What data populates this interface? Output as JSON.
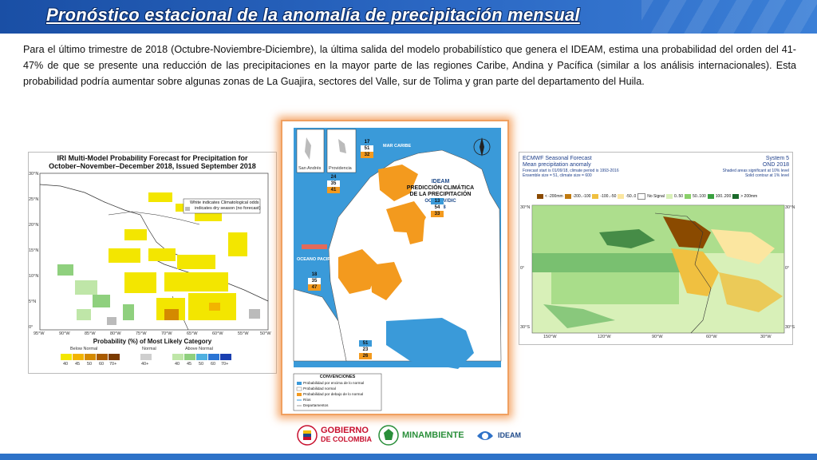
{
  "header": {
    "title": "Pronóstico estacional de la anomalía de precipitación mensual"
  },
  "body": {
    "paragraph": "Para el último trimestre de 2018 (Octubre-Noviembre-Diciembre), la última salida del modelo probabilístico que genera el IDEAM, estima una probabilidad del orden del 41-47% de que se presente una reducción de las precipitaciones en la mayor parte de las regiones Caribe, Andina y Pacífica (similar a los análisis internacionales). Esta probabilidad podría aumentar sobre algunas zonas de La Guajira, sectores del Valle, sur de Tolima y gran parte del departamento del Huila."
  },
  "iri": {
    "title_line1": "IRI Multi-Model Probability Forecast for Precipitation for",
    "title_line2": "October–November–December 2018, Issued September 2018",
    "note_line1": "White indicates Climatological odds",
    "note_line2": "indicates dry season (no forecast)",
    "lat_labels": [
      "30°N",
      "25°N",
      "20°N",
      "15°N",
      "10°N",
      "5°N",
      "0°"
    ],
    "lon_labels": [
      "95°W",
      "90°W",
      "85°W",
      "80°W",
      "75°W",
      "70°W",
      "65°W",
      "60°W",
      "55°W",
      "50°W"
    ],
    "legend_title": "Probability (%) of Most Likely Category",
    "legend_groups": [
      "Below Normal",
      "Normal",
      "Above Normal"
    ],
    "below_values": [
      "40",
      "45",
      "50",
      "60",
      "70+"
    ],
    "normal_values": [
      "40+"
    ],
    "above_values": [
      "40",
      "45",
      "50",
      "60",
      "70+"
    ]
  },
  "colombia": {
    "title_line1": "PREDICCIÓN CLIMÁTICA",
    "title_line2": "DE LA PRECIPITACIÓN",
    "title_line3": "OCT/NOV/DIC",
    "title_line4": "2018",
    "org": "IDEAM",
    "sea_label": "MAR CARIBE",
    "ocean_label": "OCEANO PACIFICO",
    "inset1": "San Andrés",
    "inset2": "Providencia",
    "boxes": [
      {
        "values": [
          "17",
          "51",
          "32"
        ]
      },
      {
        "values": [
          "24",
          "35",
          "41"
        ]
      },
      {
        "values": [
          "13",
          "54",
          "33"
        ]
      },
      {
        "values": [
          "18",
          "35",
          "47"
        ]
      },
      {
        "values": [
          "51",
          "23",
          "26"
        ]
      }
    ],
    "conventions_title": "CONVENCIONES",
    "conventions": [
      "Probabilidad por encima de lo normal",
      "Probabilidad normal",
      "Probabilidad por debajo de lo normal",
      "Ríos",
      "Departamentos"
    ]
  },
  "ecmwf": {
    "title_left_1": "ECMWF Seasonal Forecast",
    "title_left_2": "Mean precipitation anomaly",
    "sub_left_1": "Forecast start is 01/09/18, climate period is 1993-2016",
    "sub_left_2": "Ensemble size = 51, climate size = 600",
    "title_right_1": "System 5",
    "title_right_2": "OND 2018",
    "sub_right_1": "Shaded areas significant at 10% level",
    "sub_right_2": "Solid contour at 1% level",
    "legend_items": [
      "< -200mm",
      "-200..-100",
      "-100..-50",
      "-50..0",
      "No Signal",
      "0..50",
      "50..100",
      "100..200",
      "> 200mm"
    ],
    "lon_labels": [
      "150°W",
      "120°W",
      "90°W",
      "60°W",
      "30°W"
    ],
    "lat_labels_left": [
      "30°N",
      "0°",
      "30°S"
    ],
    "lat_labels_right": [
      "30°N",
      "0°",
      "30°S"
    ]
  },
  "footer": {
    "gov_line1": "GOBIERNO",
    "gov_line2": "DE COLOMBIA",
    "minamb": "MINAMBIENTE",
    "ideam": "IDEAM"
  },
  "colors": {
    "header_blue": "#1a4fa5",
    "below_normal": [
      "#f3e600",
      "#f2b400",
      "#d48a00",
      "#a85a00",
      "#7a3a00"
    ],
    "above_normal": [
      "#bfe6a8",
      "#8fd07e",
      "#4fb0e0",
      "#2a74d4",
      "#1a3fb0"
    ],
    "colombia_orange": "#f39a1e",
    "colombia_blue": "#3a9ad9"
  }
}
